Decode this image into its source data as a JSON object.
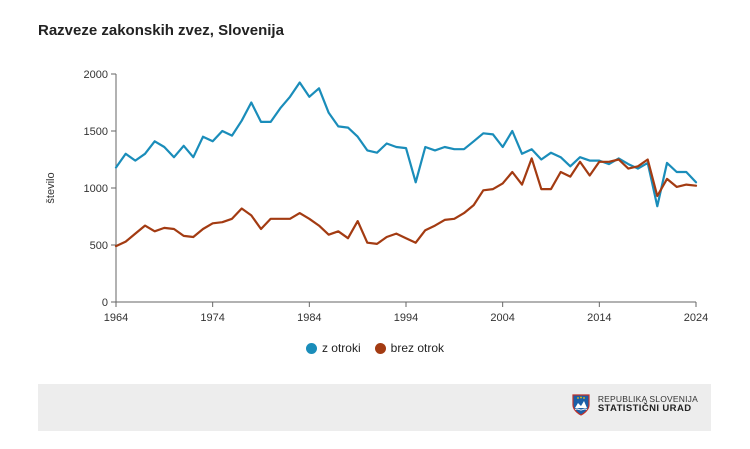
{
  "title": "Razveze zakonskih zvez, Slovenija",
  "colors": {
    "z_otroki": "#1a8dba",
    "brez_otrok": "#a33b12",
    "axis": "#666666"
  },
  "chart_data": {
    "type": "line",
    "title": "Razveze zakonskih zvez, Slovenija",
    "xlabel": "",
    "ylabel": "število",
    "xlim": [
      1964,
      2024
    ],
    "ylim": [
      0,
      2000
    ],
    "grid": false,
    "legend_position": "bottom",
    "x_ticks": [
      1964,
      1974,
      1984,
      1994,
      2004,
      2014,
      2024
    ],
    "y_ticks": [
      0,
      500,
      1000,
      1500,
      2000
    ],
    "x": [
      1964,
      1965,
      1966,
      1967,
      1968,
      1969,
      1970,
      1971,
      1972,
      1973,
      1974,
      1975,
      1976,
      1977,
      1978,
      1979,
      1980,
      1981,
      1982,
      1983,
      1984,
      1985,
      1986,
      1987,
      1988,
      1989,
      1990,
      1991,
      1992,
      1993,
      1994,
      1995,
      1996,
      1997,
      1998,
      1999,
      2000,
      2001,
      2002,
      2003,
      2004,
      2005,
      2006,
      2007,
      2008,
      2009,
      2010,
      2011,
      2012,
      2013,
      2014,
      2015,
      2016,
      2017,
      2018,
      2019,
      2020,
      2021,
      2022,
      2023,
      2024
    ],
    "series": [
      {
        "name": "z otroki",
        "color": "#1a8dba",
        "values": [
          1180,
          1300,
          1240,
          1300,
          1410,
          1360,
          1270,
          1370,
          1270,
          1450,
          1410,
          1500,
          1460,
          1590,
          1750,
          1580,
          1580,
          1700,
          1800,
          1925,
          1800,
          1875,
          1660,
          1540,
          1530,
          1450,
          1330,
          1310,
          1390,
          1360,
          1350,
          1050,
          1360,
          1330,
          1360,
          1340,
          1340,
          1410,
          1480,
          1470,
          1360,
          1500,
          1300,
          1340,
          1250,
          1310,
          1270,
          1190,
          1270,
          1240,
          1240,
          1210,
          1260,
          1210,
          1170,
          1220,
          840,
          1220,
          1140,
          1140,
          1050
        ]
      },
      {
        "name": "brez otrok",
        "color": "#a33b12",
        "values": [
          490,
          530,
          600,
          670,
          620,
          650,
          640,
          580,
          570,
          640,
          690,
          700,
          730,
          820,
          760,
          640,
          730,
          730,
          730,
          780,
          730,
          670,
          590,
          620,
          560,
          710,
          520,
          510,
          570,
          600,
          560,
          520,
          630,
          670,
          720,
          730,
          780,
          850,
          980,
          990,
          1040,
          1140,
          1030,
          1260,
          990,
          990,
          1140,
          1100,
          1230,
          1110,
          1230,
          1230,
          1250,
          1170,
          1190,
          1250,
          930,
          1080,
          1010,
          1030,
          1020
        ]
      }
    ]
  },
  "legend": [
    {
      "label": "z otroki",
      "color": "#1a8dba"
    },
    {
      "label": "brez otrok",
      "color": "#a33b12"
    }
  ],
  "footer": {
    "logo_line1": "REPUBLIKA SLOVENIJA",
    "logo_line2": "STATISTIČNI URAD",
    "logo_icon": "slovenia-coat-of-arms-icon"
  }
}
